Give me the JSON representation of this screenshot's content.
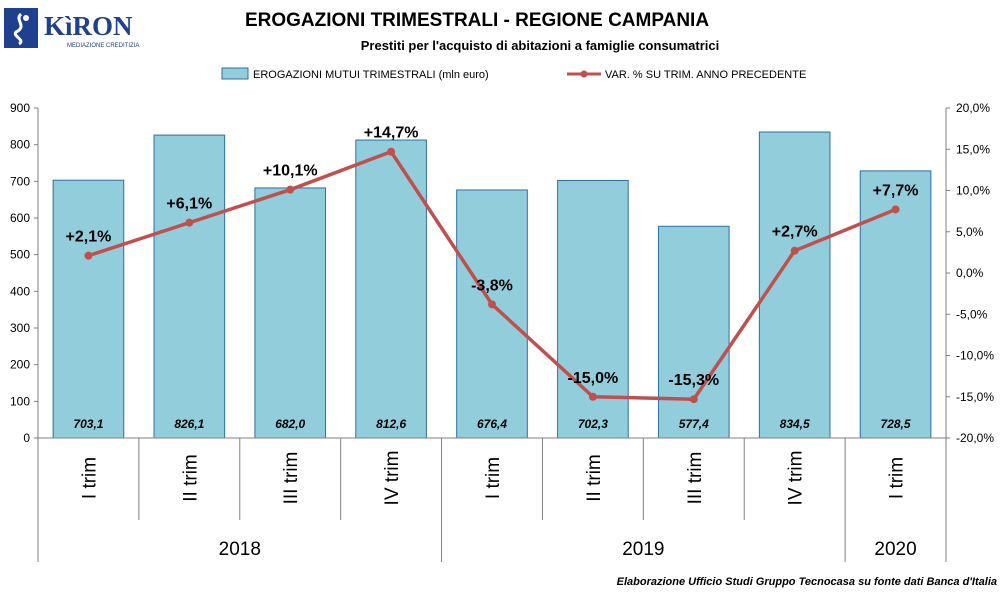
{
  "logo": {
    "name": "KìRON",
    "tagline": "MEDIAZIONE CREDITIZIA"
  },
  "footer": {
    "source": "Elaborazione Ufficio Studi Gruppo Tecnocasa su fonte dati Banca d'Italia"
  },
  "colors": {
    "bar_fill": "#92cddc",
    "bar_stroke": "#2e6fa7",
    "line": "#c0504d"
  },
  "chart_data": {
    "type": "bar",
    "title": "EROGAZIONI TRIMESTRALI - REGIONE CAMPANIA",
    "subtitle": "Prestiti per l'acquisto di abitazioni a famiglie consumatrici",
    "categories": [
      "I trim",
      "II trim",
      "III trim",
      "IV trim",
      "I trim",
      "II trim",
      "III trim",
      "IV trim",
      "I trim"
    ],
    "groups": [
      {
        "label": "2018",
        "count": 4
      },
      {
        "label": "2019",
        "count": 4
      },
      {
        "label": "2020",
        "count": 1
      }
    ],
    "series": [
      {
        "name": "EROGAZIONI MUTUI TRIMESTRALI (mln euro)",
        "type": "bar",
        "axis": "left",
        "values": [
          703.1,
          826.1,
          682.0,
          812.6,
          676.4,
          702.3,
          577.4,
          834.5,
          728.5
        ],
        "labels": [
          "703,1",
          "826,1",
          "682,0",
          "812,6",
          "676,4",
          "702,3",
          "577,4",
          "834,5",
          "728,5"
        ]
      },
      {
        "name": "VAR. % SU TRIM. ANNO PRECEDENTE",
        "type": "line",
        "axis": "right",
        "values": [
          2.1,
          6.1,
          10.1,
          14.7,
          -3.8,
          -15.0,
          -15.3,
          2.7,
          7.7
        ],
        "labels": [
          "+2,1%",
          "+6,1%",
          "+10,1%",
          "+14,7%",
          "-3,8%",
          "-15,0%",
          "-15,3%",
          "+2,7%",
          "+7,7%"
        ]
      }
    ],
    "y_left": {
      "range": [
        0,
        900
      ],
      "ticks": [
        0,
        100,
        200,
        300,
        400,
        500,
        600,
        700,
        800,
        900
      ],
      "tick_labels": [
        "0",
        "100",
        "200",
        "300",
        "400",
        "500",
        "600",
        "700",
        "800",
        "900"
      ]
    },
    "y_right": {
      "range": [
        -20,
        20
      ],
      "ticks": [
        -20,
        -15,
        -10,
        -5,
        0,
        5,
        10,
        15,
        20
      ],
      "tick_labels": [
        "-20,0%",
        "-15,0%",
        "-10,0%",
        "-5,0%",
        "0,0%",
        "5,0%",
        "10,0%",
        "15,0%",
        "20,0%"
      ]
    },
    "legend_position": "top",
    "grid": false
  }
}
